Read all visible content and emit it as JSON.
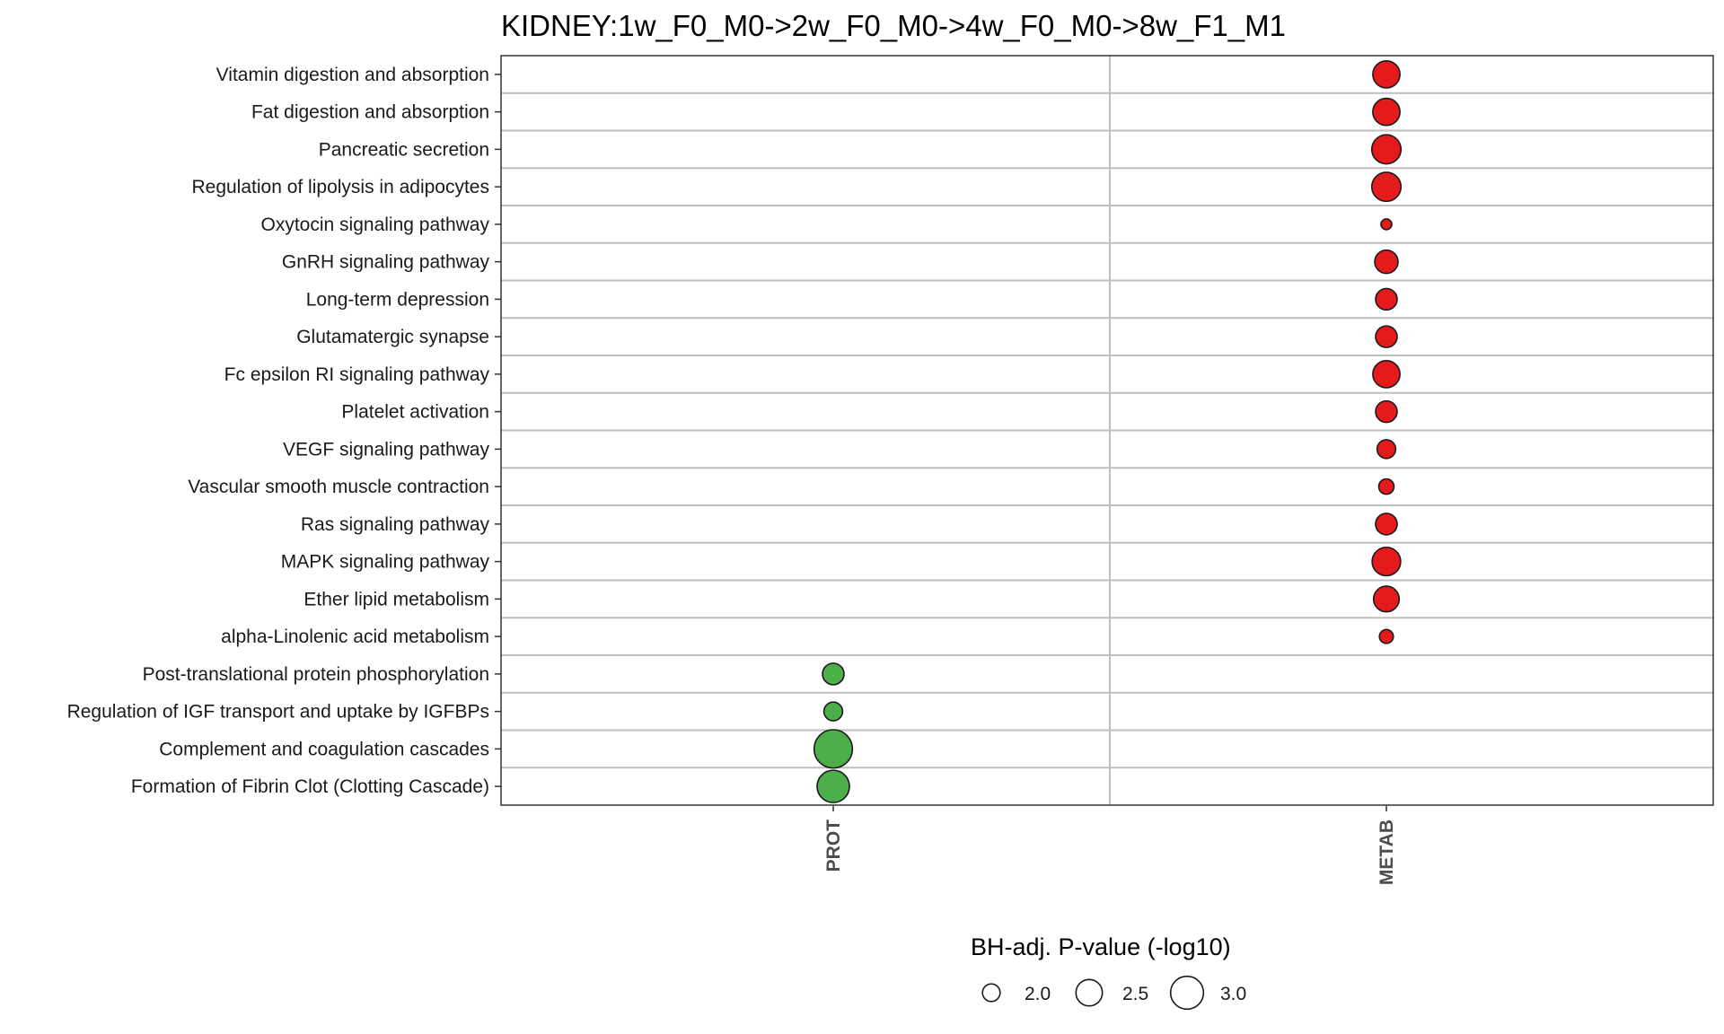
{
  "chart_data": {
    "type": "scatter",
    "title": "KIDNEY:1w_F0_M0->2w_F0_M0->4w_F0_M0->8w_F1_M1",
    "xlabel": "",
    "ylabel": "",
    "x_categories": [
      "PROT",
      "METAB"
    ],
    "y_categories": [
      "Vitamin digestion and absorption",
      "Fat digestion and absorption",
      "Pancreatic secretion",
      "Regulation of lipolysis in adipocytes",
      "Oxytocin signaling pathway",
      "GnRH signaling pathway",
      "Long-term depression",
      "Glutamatergic synapse",
      "Fc epsilon RI signaling pathway",
      "Platelet activation",
      "VEGF signaling pathway",
      "Vascular smooth muscle contraction",
      "Ras signaling pathway",
      "MAPK signaling pathway",
      "Ether lipid metabolism",
      "alpha-Linolenic acid metabolism",
      "Post-translational protein phosphorylation",
      "Regulation of IGF transport and uptake by IGFBPs",
      "Complement and coagulation cascades",
      "Formation of Fibrin Clot (Clotting Cascade)"
    ],
    "size_variable": "BH-adj. P-value (-log10)",
    "colors": {
      "PROT": "#4daf4a",
      "METAB": "#e41a1c"
    },
    "points": [
      {
        "y": "Vitamin digestion and absorption",
        "x": "METAB",
        "size": 2.55
      },
      {
        "y": "Fat digestion and absorption",
        "x": "METAB",
        "size": 2.55
      },
      {
        "y": "Pancreatic secretion",
        "x": "METAB",
        "size": 2.7
      },
      {
        "y": "Regulation of lipolysis in adipocytes",
        "x": "METAB",
        "size": 2.7
      },
      {
        "y": "Oxytocin signaling pathway",
        "x": "METAB",
        "size": 1.75
      },
      {
        "y": "GnRH signaling pathway",
        "x": "METAB",
        "size": 2.3
      },
      {
        "y": "Long-term depression",
        "x": "METAB",
        "size": 2.2
      },
      {
        "y": "Glutamatergic synapse",
        "x": "METAB",
        "size": 2.2
      },
      {
        "y": "Fc epsilon RI signaling pathway",
        "x": "METAB",
        "size": 2.55
      },
      {
        "y": "Platelet activation",
        "x": "METAB",
        "size": 2.2
      },
      {
        "y": "VEGF signaling pathway",
        "x": "METAB",
        "size": 2.05
      },
      {
        "y": "Vascular smooth muscle contraction",
        "x": "METAB",
        "size": 1.9
      },
      {
        "y": "Ras signaling pathway",
        "x": "METAB",
        "size": 2.2
      },
      {
        "y": "MAPK signaling pathway",
        "x": "METAB",
        "size": 2.65
      },
      {
        "y": "Ether lipid metabolism",
        "x": "METAB",
        "size": 2.45
      },
      {
        "y": "alpha-Linolenic acid metabolism",
        "x": "METAB",
        "size": 1.85
      },
      {
        "y": "Post-translational protein phosphorylation",
        "x": "PROT",
        "size": 2.2
      },
      {
        "y": "Regulation of IGF transport and uptake by IGFBPs",
        "x": "PROT",
        "size": 2.05
      },
      {
        "y": "Complement and coagulation cascades",
        "x": "PROT",
        "size": 3.5
      },
      {
        "y": "Formation of Fibrin Clot (Clotting Cascade)",
        "x": "PROT",
        "size": 2.95
      }
    ],
    "legend": {
      "title": "BH-adj. P-value (-log10)",
      "placement": "bottom",
      "entries": [
        {
          "label": "2.0",
          "value": 2.0
        },
        {
          "label": "2.5",
          "value": 2.5
        },
        {
          "label": "3.0",
          "value": 3.0
        }
      ]
    },
    "grid": true
  }
}
